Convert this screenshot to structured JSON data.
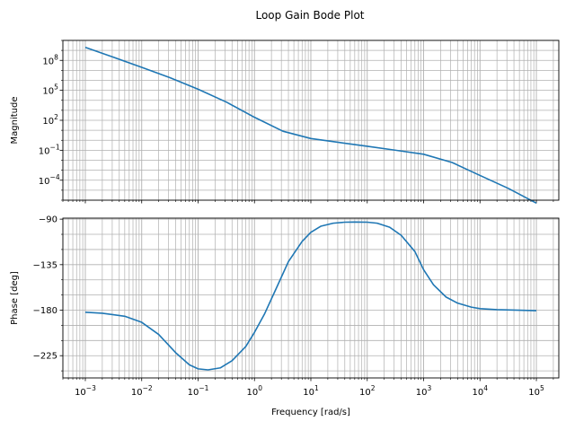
{
  "title": "Loop Gain Bode Plot",
  "colors": {
    "line": "#1f77b4",
    "grid": "#b0b0b0",
    "axes": "#000000",
    "background": "#ffffff"
  },
  "chart_data": [
    {
      "type": "line",
      "panel": "magnitude",
      "ylabel": "Magnitude",
      "xlabel": "",
      "xscale": "log",
      "yscale": "log",
      "xlim": [
        0.0004,
        250000
      ],
      "ylim": [
        1e-06,
        10000000000.0
      ],
      "grid": true,
      "ytick_labels": [
        {
          "base": "10",
          "exp": "8"
        },
        {
          "base": "10",
          "exp": "5"
        },
        {
          "base": "10",
          "exp": "2"
        },
        {
          "base": "10",
          "exp": "−1"
        },
        {
          "base": "10",
          "exp": "−4"
        }
      ],
      "series": [
        {
          "x": [
            0.001,
            0.0032,
            0.01,
            0.032,
            0.1,
            0.32,
            1,
            3.2,
            10,
            32,
            100,
            320,
            1000,
            3200,
            10000,
            32000,
            100000
          ],
          "y": [
            2000000000.0,
            200000000.0,
            20000000.0,
            1800000.0,
            130000.0,
            6500,
            200,
            8,
            1.5,
            0.6,
            0.25,
            0.1,
            0.04,
            0.006,
            0.0003,
            1.5e-05,
            5e-07
          ]
        }
      ]
    },
    {
      "type": "line",
      "panel": "phase",
      "ylabel": "Phase [deg]",
      "xlabel": "Frequency [rad/s]",
      "xscale": "log",
      "xlim": [
        0.0004,
        250000
      ],
      "ylim": [
        -247,
        -89
      ],
      "yticks": [
        -90,
        -135,
        -180,
        -225
      ],
      "ytick_labels": [
        "−90",
        "−135",
        "−180",
        "−225"
      ],
      "grid": true,
      "xtick_labels": [
        {
          "base": "10",
          "exp": "−3"
        },
        {
          "base": "10",
          "exp": "−2"
        },
        {
          "base": "10",
          "exp": "−1"
        },
        {
          "base": "10",
          "exp": "0"
        },
        {
          "base": "10",
          "exp": "1"
        },
        {
          "base": "10",
          "exp": "2"
        },
        {
          "base": "10",
          "exp": "3"
        },
        {
          "base": "10",
          "exp": "4"
        },
        {
          "base": "10",
          "exp": "5"
        }
      ],
      "series": [
        {
          "x": [
            0.001,
            0.002,
            0.005,
            0.01,
            0.02,
            0.04,
            0.07,
            0.1,
            0.15,
            0.25,
            0.4,
            0.7,
            1,
            1.5,
            2.5,
            4,
            7,
            10,
            15,
            25,
            40,
            60,
            100,
            150,
            250,
            400,
            700,
            1000,
            1500,
            2500,
            4000,
            7000,
            10000,
            20000,
            50000,
            100000
          ],
          "y": [
            -182,
            -183,
            -186,
            -192,
            -204,
            -222,
            -234,
            -238,
            -239,
            -237,
            -230,
            -216,
            -202,
            -184,
            -157,
            -132,
            -112,
            -103,
            -97,
            -94,
            -93,
            -92.8,
            -93,
            -94,
            -98,
            -106,
            -122,
            -140,
            -155,
            -167,
            -173,
            -177,
            -178.5,
            -179.5,
            -180,
            -180.5
          ]
        }
      ]
    }
  ]
}
